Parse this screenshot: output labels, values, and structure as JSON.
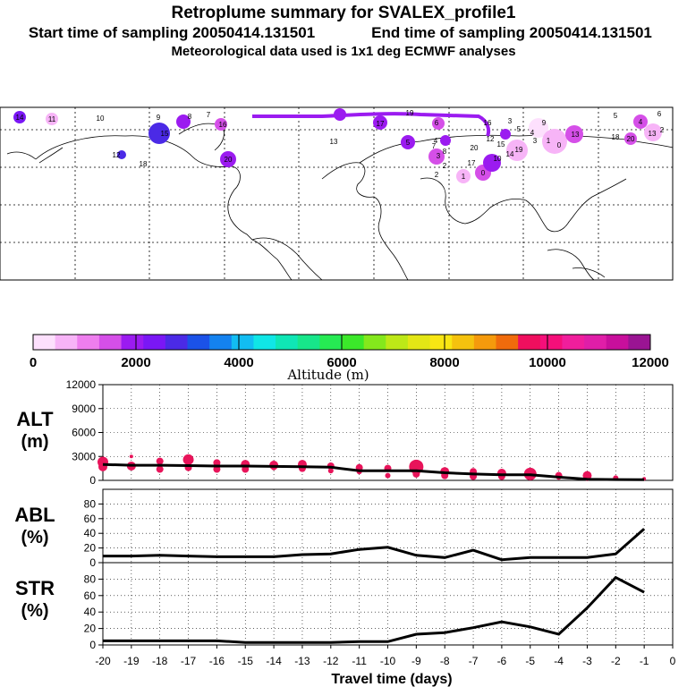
{
  "header": {
    "title": "Retroplume summary for SVALEX_profile1",
    "start": "Start time of sampling 20050414.131501",
    "end": "End time of sampling 20050414.131501",
    "met": "Meteorological data used is 1x1 deg ECMWF analyses"
  },
  "colors": {
    "alt_marker": "#e8145a",
    "line": "#000000",
    "map_line": "#000000",
    "grid": "#000000"
  },
  "colorbar": {
    "label": "Altitude (m)",
    "ticks": [
      "0",
      "2000",
      "4000",
      "6000",
      "8000",
      "10000",
      "12000"
    ],
    "colors": [
      "#fde0fd",
      "#f7b4f7",
      "#ee7eee",
      "#d54fe8",
      "#9b1bf0",
      "#7a17f5",
      "#4b2ae6",
      "#1b52e8",
      "#1482ef",
      "#12bdf2",
      "#10e6e6",
      "#0fe6b5",
      "#17e68a",
      "#26ea53",
      "#3be82a",
      "#84e81c",
      "#bde817",
      "#e3e615",
      "#f8e613",
      "#f5c20e",
      "#f59a0c",
      "#f06b0c",
      "#ef0f5e",
      "#f50f7a",
      "#f01e9c",
      "#e01ea8",
      "#c80f9c",
      "#9a1493"
    ]
  },
  "map": {
    "plume_labels": [
      "14",
      "11",
      "10",
      "9",
      "8",
      "7",
      "16",
      "15",
      "18",
      "12",
      "20",
      "13",
      "17",
      "19",
      "6",
      "5",
      "4",
      "3",
      "2",
      "1",
      "0"
    ]
  },
  "chart_data": [
    {
      "type": "scatter",
      "name": "ALT",
      "ylabel": "ALT",
      "yunit": "(m)",
      "ylim": [
        0,
        12000
      ],
      "yticks": [
        0,
        3000,
        6000,
        9000,
        12000
      ],
      "xlim": [
        -20,
        0
      ],
      "x": [
        -20,
        -19,
        -18,
        -17,
        -16,
        -15,
        -14,
        -13,
        -12,
        -11,
        -10,
        -9,
        -8,
        -7,
        -6,
        -5,
        -4,
        -3,
        -2,
        -1
      ],
      "line": [
        2000,
        1900,
        1900,
        1850,
        1800,
        1800,
        1750,
        1700,
        1650,
        1200,
        1200,
        1200,
        950,
        800,
        700,
        700,
        400,
        150,
        100,
        80
      ],
      "markers": [
        {
          "x": -20,
          "y": 2300,
          "r": 6
        },
        {
          "x": -20,
          "y": 1700,
          "r": 5
        },
        {
          "x": -19,
          "y": 3000,
          "r": 2
        },
        {
          "x": -19,
          "y": 1800,
          "r": 5
        },
        {
          "x": -18,
          "y": 2400,
          "r": 4
        },
        {
          "x": -18,
          "y": 1400,
          "r": 4
        },
        {
          "x": -17,
          "y": 2600,
          "r": 6
        },
        {
          "x": -17,
          "y": 1600,
          "r": 4
        },
        {
          "x": -16,
          "y": 2200,
          "r": 4
        },
        {
          "x": -16,
          "y": 1400,
          "r": 4
        },
        {
          "x": -15,
          "y": 2000,
          "r": 5
        },
        {
          "x": -15,
          "y": 1400,
          "r": 4
        },
        {
          "x": -14,
          "y": 1900,
          "r": 5
        },
        {
          "x": -14,
          "y": 1600,
          "r": 3
        },
        {
          "x": -13,
          "y": 2000,
          "r": 5
        },
        {
          "x": -13,
          "y": 1500,
          "r": 4
        },
        {
          "x": -12,
          "y": 1800,
          "r": 4
        },
        {
          "x": -12,
          "y": 1200,
          "r": 3
        },
        {
          "x": -11,
          "y": 1600,
          "r": 4
        },
        {
          "x": -11,
          "y": 1100,
          "r": 3
        },
        {
          "x": -10,
          "y": 1500,
          "r": 4
        },
        {
          "x": -10,
          "y": 600,
          "r": 3
        },
        {
          "x": -9,
          "y": 1700,
          "r": 8
        },
        {
          "x": -9,
          "y": 800,
          "r": 4
        },
        {
          "x": -8,
          "y": 1100,
          "r": 5
        },
        {
          "x": -8,
          "y": 600,
          "r": 4
        },
        {
          "x": -7,
          "y": 1100,
          "r": 4
        },
        {
          "x": -7,
          "y": 500,
          "r": 4
        },
        {
          "x": -6,
          "y": 900,
          "r": 5
        },
        {
          "x": -6,
          "y": 500,
          "r": 4
        },
        {
          "x": -5,
          "y": 800,
          "r": 7
        },
        {
          "x": -5,
          "y": 500,
          "r": 4
        },
        {
          "x": -4,
          "y": 600,
          "r": 4
        },
        {
          "x": -4,
          "y": 400,
          "r": 3
        },
        {
          "x": -3,
          "y": 600,
          "r": 5
        },
        {
          "x": -3,
          "y": 250,
          "r": 3
        },
        {
          "x": -2,
          "y": 300,
          "r": 3
        },
        {
          "x": -1,
          "y": 200,
          "r": 2
        }
      ]
    },
    {
      "type": "line",
      "name": "ABL",
      "ylabel": "ABL",
      "yunit": "(%)",
      "ylim": [
        0,
        100
      ],
      "yticks": [
        0,
        20,
        40,
        60,
        80
      ],
      "xlim": [
        -20,
        0
      ],
      "x": [
        -20,
        -19,
        -18,
        -17,
        -16,
        -15,
        -14,
        -13,
        -12,
        -11,
        -10,
        -9,
        -8,
        -7,
        -6,
        -5,
        -4,
        -3,
        -2,
        -1
      ],
      "values": [
        9,
        9,
        10,
        9,
        8,
        8,
        8,
        11,
        12,
        18,
        21,
        10,
        7,
        17,
        4,
        7,
        7,
        7,
        12,
        46
      ]
    },
    {
      "type": "line",
      "name": "STR",
      "ylabel": "STR",
      "yunit": "(%)",
      "ylim": [
        0,
        100
      ],
      "yticks": [
        0,
        20,
        40,
        60,
        80
      ],
      "xlim": [
        -20,
        0
      ],
      "x": [
        -20,
        -19,
        -18,
        -17,
        -16,
        -15,
        -14,
        -13,
        -12,
        -11,
        -10,
        -9,
        -8,
        -7,
        -6,
        -5,
        -4,
        -3,
        -2,
        -1
      ],
      "values": [
        5,
        5,
        5,
        5,
        5,
        3,
        3,
        3,
        3,
        4,
        4,
        13,
        15,
        21,
        28,
        22,
        13,
        45,
        82,
        64
      ],
      "xlabel": "Travel time (days)",
      "xticks": [
        "-20",
        "-19",
        "-18",
        "-17",
        "-16",
        "-15",
        "-14",
        "-13",
        "-12",
        "-11",
        "-10",
        "-9",
        "-8",
        "-7",
        "-6",
        "-5",
        "-4",
        "-3",
        "-2",
        "-1",
        "0"
      ]
    }
  ]
}
